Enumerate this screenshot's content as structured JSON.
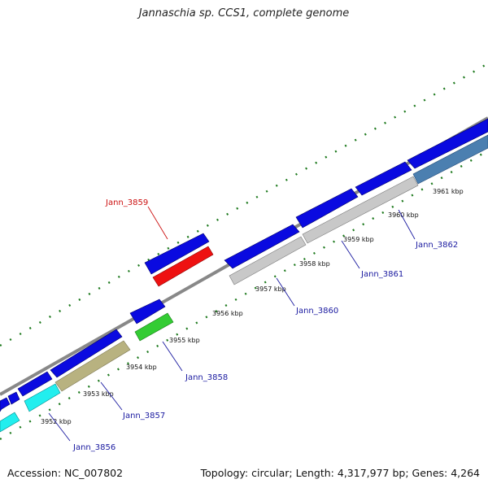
{
  "title": "Jannaschia sp. CCS1, complete genome",
  "accession": "Accession: NC_007802",
  "stats": "Topology: circular; Length: 4,317,977 bp; Genes: 4,264",
  "colors": {
    "backbone": "#888888",
    "tick": "#1e7a1e",
    "blue": "#0a0ae0",
    "red": "#ee1111",
    "gray": "#c8c8c8",
    "steel": "#4b7fb0",
    "cyan": "#22eeee",
    "olive": "#b8b280",
    "green": "#33cc33",
    "label_blue": "#1a1aa0",
    "label_red": "#cc1111"
  },
  "ticks": [
    "3952 kbp",
    "3953 kbp",
    "3954 kbp",
    "3955 kbp",
    "3956 kbp",
    "3957 kbp",
    "3958 kbp",
    "3959 kbp",
    "3960 kbp",
    "3961 kbp"
  ],
  "genes": [
    "Jann_3856",
    "Jann_3857",
    "Jann_3858",
    "Jann_3859",
    "Jann_3860",
    "Jann_3861",
    "Jann_3862"
  ]
}
